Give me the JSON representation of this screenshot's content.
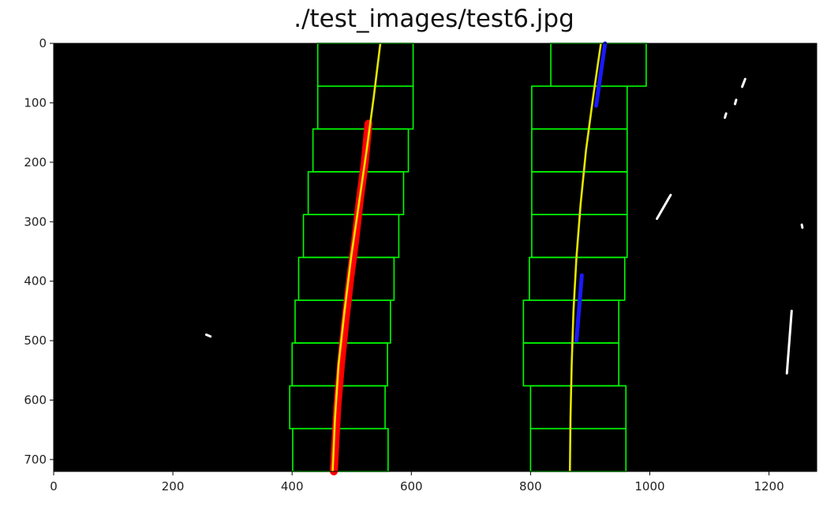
{
  "chart_data": {
    "type": "image-plot",
    "title": "./test_images/test6.jpg",
    "xlabel": "",
    "ylabel": "",
    "xlim": [
      0,
      1280
    ],
    "ylim": [
      720,
      0
    ],
    "x_ticks": [
      0,
      200,
      400,
      600,
      800,
      1000,
      1200
    ],
    "y_ticks": [
      0,
      100,
      200,
      300,
      400,
      500,
      600,
      700
    ],
    "grid": false,
    "background_color": "#000000",
    "windows": {
      "left": [
        {
          "x0": 443,
          "x1": 603,
          "y0": 0,
          "y1": 72
        },
        {
          "x0": 443,
          "x1": 603,
          "y0": 72,
          "y1": 144
        },
        {
          "x0": 435,
          "x1": 595,
          "y0": 144,
          "y1": 216
        },
        {
          "x0": 427,
          "x1": 587,
          "y0": 216,
          "y1": 288
        },
        {
          "x0": 419,
          "x1": 579,
          "y0": 288,
          "y1": 360
        },
        {
          "x0": 411,
          "x1": 571,
          "y0": 360,
          "y1": 432
        },
        {
          "x0": 405,
          "x1": 565,
          "y0": 432,
          "y1": 504
        },
        {
          "x0": 400,
          "x1": 560,
          "y0": 504,
          "y1": 576
        },
        {
          "x0": 396,
          "x1": 556,
          "y0": 576,
          "y1": 648
        },
        {
          "x0": 401,
          "x1": 561,
          "y0": 648,
          "y1": 720
        }
      ],
      "right": [
        {
          "x0": 834,
          "x1": 994,
          "y0": 0,
          "y1": 72
        },
        {
          "x0": 802,
          "x1": 962,
          "y0": 72,
          "y1": 144
        },
        {
          "x0": 802,
          "x1": 962,
          "y0": 144,
          "y1": 216
        },
        {
          "x0": 802,
          "x1": 962,
          "y0": 216,
          "y1": 288
        },
        {
          "x0": 802,
          "x1": 962,
          "y0": 288,
          "y1": 360
        },
        {
          "x0": 798,
          "x1": 958,
          "y0": 360,
          "y1": 432
        },
        {
          "x0": 788,
          "x1": 948,
          "y0": 432,
          "y1": 504
        },
        {
          "x0": 788,
          "x1": 948,
          "y0": 504,
          "y1": 576
        },
        {
          "x0": 800,
          "x1": 960,
          "y0": 576,
          "y1": 648
        },
        {
          "x0": 800,
          "x1": 960,
          "y0": 648,
          "y1": 720
        }
      ]
    },
    "left_lane_pixels": {
      "color": "#ff0000",
      "points": [
        [
          528,
          135
        ],
        [
          522,
          200
        ],
        [
          514,
          260
        ],
        [
          506,
          330
        ],
        [
          497,
          400
        ],
        [
          489,
          470
        ],
        [
          482,
          540
        ],
        [
          476,
          610
        ],
        [
          470,
          720
        ]
      ]
    },
    "right_lane_pixels": {
      "color": "#1a1aff",
      "segments": [
        [
          [
            925,
            0
          ],
          [
            910,
            105
          ]
        ],
        [
          [
            886,
            390
          ],
          [
            877,
            500
          ]
        ]
      ]
    },
    "fit_lines": {
      "color": "#e6e600",
      "left": [
        [
          548,
          0
        ],
        [
          537,
          90
        ],
        [
          525,
          180
        ],
        [
          512,
          270
        ],
        [
          499,
          360
        ],
        [
          488,
          450
        ],
        [
          478,
          540
        ],
        [
          472,
          630
        ],
        [
          468,
          720
        ]
      ],
      "right": [
        [
          918,
          0
        ],
        [
          905,
          90
        ],
        [
          893,
          180
        ],
        [
          884,
          270
        ],
        [
          877,
          360
        ],
        [
          872,
          450
        ],
        [
          869,
          540
        ],
        [
          867,
          630
        ],
        [
          866,
          720
        ]
      ]
    },
    "noise": {
      "color": "#ffffff",
      "marks": [
        [
          [
            1160,
            60
          ],
          [
            1155,
            73
          ]
        ],
        [
          [
            1145,
            95
          ],
          [
            1143,
            102
          ]
        ],
        [
          [
            1128,
            118
          ],
          [
            1126,
            125
          ]
        ],
        [
          [
            1035,
            255
          ],
          [
            1012,
            295
          ]
        ],
        [
          [
            1255,
            305
          ],
          [
            1256,
            310
          ]
        ],
        [
          [
            256,
            490
          ],
          [
            263,
            493
          ]
        ],
        [
          [
            1238,
            450
          ],
          [
            1230,
            555
          ]
        ]
      ]
    }
  }
}
